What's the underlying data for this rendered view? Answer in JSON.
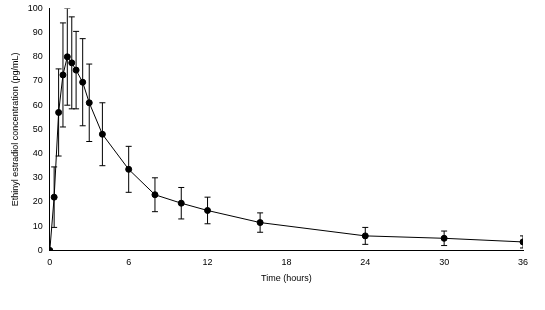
{
  "chart_data": {
    "type": "line",
    "x_label": "Time (hours)",
    "y_label": "Ethinyl estradiol concentration (pg/mL)",
    "x": [
      0,
      0.33,
      0.67,
      1,
      1.33,
      1.67,
      2,
      2.5,
      3,
      4,
      6,
      8,
      10,
      12,
      16,
      24,
      30,
      36
    ],
    "values": [
      0,
      22,
      57,
      72.5,
      80,
      77.5,
      74.5,
      69.5,
      61,
      48,
      33.5,
      23,
      19.5,
      16.5,
      11.5,
      6,
      5,
      3.5
    ],
    "errors": [
      0,
      12.5,
      18,
      21.5,
      20,
      19,
      16,
      18,
      16,
      13,
      9.5,
      7,
      6.5,
      5.5,
      4,
      3.5,
      3,
      2.5
    ],
    "color": "#000000",
    "marker": "circle",
    "line_style": "solid",
    "xlim": [
      0,
      36
    ],
    "xticks": [
      0,
      6,
      12,
      18,
      24,
      30,
      36
    ],
    "ylim": [
      0,
      100
    ],
    "yticks": [
      0,
      10,
      20,
      30,
      40,
      50,
      60,
      70,
      80,
      90,
      100
    ],
    "grid": false
  }
}
